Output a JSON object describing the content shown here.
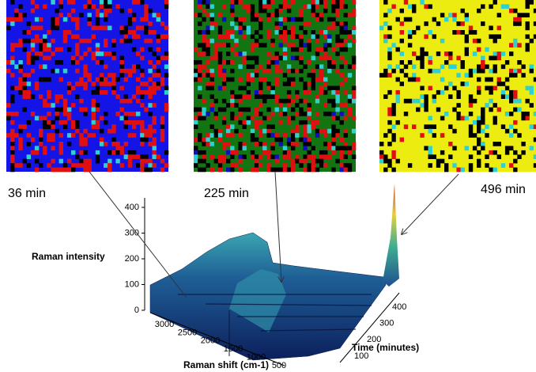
{
  "maps": [
    {
      "label": "36 min"
    },
    {
      "label": "225 min"
    },
    {
      "label": "496 min"
    }
  ],
  "plot": {
    "z_axis_label": "Raman intensity",
    "z_ticks": [
      0,
      100,
      200,
      300,
      400
    ],
    "x_axis_label": "Raman shift (cm-1)",
    "x_ticks": [
      3000,
      2500,
      2000,
      1500,
      1000,
      500
    ],
    "y_axis_label": "Time (minutes)",
    "y_ticks": [
      100,
      200,
      300,
      400
    ]
  }
}
